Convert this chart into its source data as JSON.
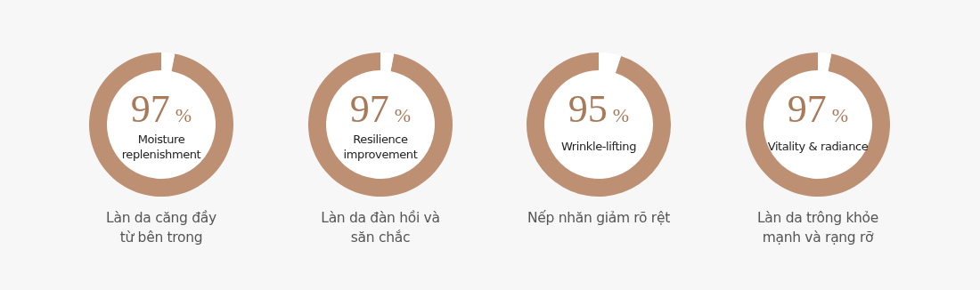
{
  "chart_data": [
    {
      "type": "donut",
      "title": "Làn da căng đầy\ntừ bên trong",
      "categories": [
        "Moisture\nreplenishment",
        null
      ],
      "values": [
        97,
        3
      ],
      "colors": [
        "#be9073",
        "#ffffff"
      ],
      "value_labels": [
        "97%",
        null
      ]
    },
    {
      "type": "donut",
      "title": "Làn da đàn hồi và\nsăn chắc",
      "categories": [
        "Resilience\nimprovement",
        null
      ],
      "values": [
        97,
        3
      ],
      "colors": [
        "#be9073",
        "#ffffff"
      ],
      "value_labels": [
        "97%",
        null
      ]
    },
    {
      "type": "donut",
      "title": "Nếp nhăn giảm rõ rệt",
      "categories": [
        "Wrinkle-lifting",
        null
      ],
      "values": [
        95,
        5
      ],
      "colors": [
        "#be9073",
        "#ffffff"
      ],
      "value_labels": [
        "95%",
        null
      ]
    },
    {
      "type": "donut",
      "title": "Làn da trông khỏe\nmạnh và rạng rỡ",
      "categories": [
        "Vitality & radiance",
        null
      ],
      "values": [
        97,
        3
      ],
      "colors": [
        "#be9073",
        "#ffffff"
      ],
      "value_labels": [
        "97%",
        null
      ]
    }
  ]
}
